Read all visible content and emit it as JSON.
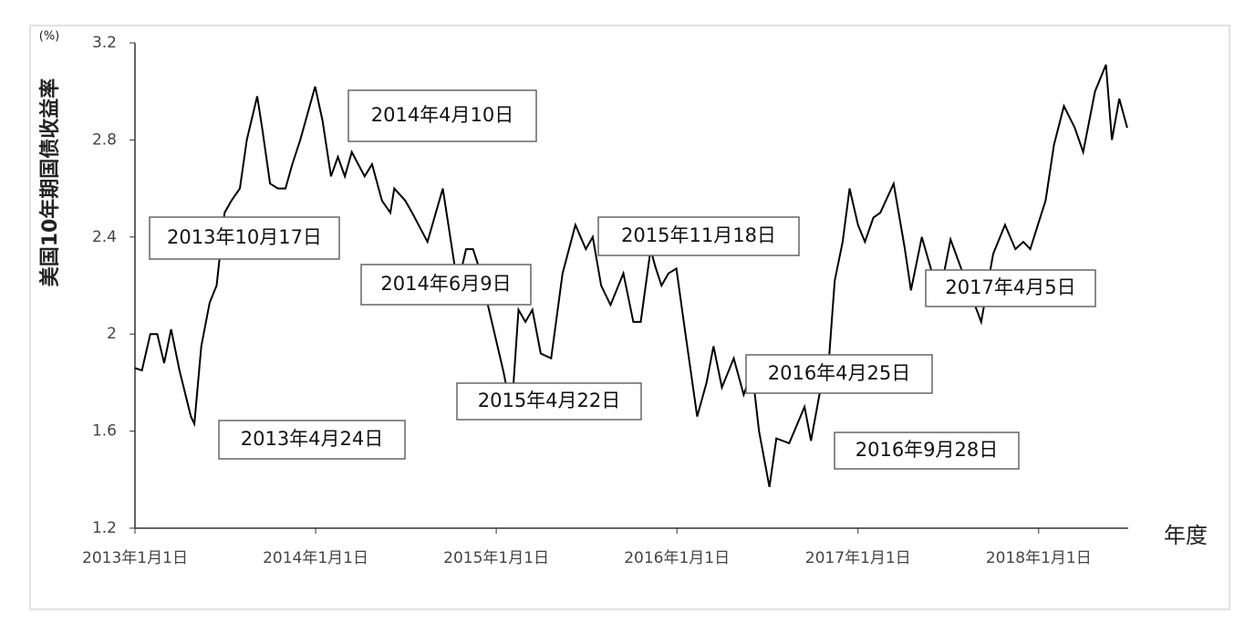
{
  "chart_data": {
    "type": "line",
    "y_label": "美国10年期国债收益率",
    "y_unit": "(%)",
    "x_label": "年度",
    "color": "#000000",
    "x": [
      "2013-01-01",
      "2013-01-15",
      "2013-02-01",
      "2013-02-15",
      "2013-03-01",
      "2013-03-15",
      "2013-04-01",
      "2013-04-24",
      "2013-05-01",
      "2013-05-15",
      "2013-06-01",
      "2013-06-15",
      "2013-07-01",
      "2013-07-15",
      "2013-08-01",
      "2013-08-15",
      "2013-09-05",
      "2013-09-15",
      "2013-10-01",
      "2013-10-17",
      "2013-11-01",
      "2013-11-15",
      "2013-12-01",
      "2013-12-31",
      "2014-01-15",
      "2014-02-01",
      "2014-02-15",
      "2014-03-01",
      "2014-03-15",
      "2014-04-10",
      "2014-04-25",
      "2014-05-15",
      "2014-06-01",
      "2014-06-09",
      "2014-07-01",
      "2014-07-15",
      "2014-08-15",
      "2014-09-15",
      "2014-10-15",
      "2014-11-01",
      "2014-11-15",
      "2014-12-01",
      "2014-12-15",
      "2015-01-15",
      "2015-02-01",
      "2015-02-15",
      "2015-03-01",
      "2015-03-15",
      "2015-04-01",
      "2015-04-22",
      "2015-05-15",
      "2015-06-10",
      "2015-07-01",
      "2015-07-15",
      "2015-08-01",
      "2015-08-20",
      "2015-09-15",
      "2015-10-05",
      "2015-10-20",
      "2015-11-09",
      "2015-11-18",
      "2015-12-01",
      "2015-12-15",
      "2015-12-31",
      "2016-01-15",
      "2016-02-11",
      "2016-03-01",
      "2016-03-15",
      "2016-04-01",
      "2016-04-25",
      "2016-05-15",
      "2016-06-01",
      "2016-06-15",
      "2016-07-06",
      "2016-07-20",
      "2016-08-15",
      "2016-09-15",
      "2016-09-28",
      "2016-10-15",
      "2016-11-01",
      "2016-11-15",
      "2016-12-01",
      "2016-12-15",
      "2017-01-01",
      "2017-01-15",
      "2017-02-01",
      "2017-02-15",
      "2017-03-14",
      "2017-04-05",
      "2017-04-18",
      "2017-05-10",
      "2017-06-14",
      "2017-07-07",
      "2017-08-01",
      "2017-09-07",
      "2017-10-01",
      "2017-10-25",
      "2017-11-15",
      "2017-12-01",
      "2017-12-15",
      "2018-01-01",
      "2018-01-15",
      "2018-02-01",
      "2018-02-21",
      "2018-03-15",
      "2018-04-01",
      "2018-04-25",
      "2018-05-17",
      "2018-05-29",
      "2018-06-13",
      "2018-06-29"
    ],
    "values": [
      1.86,
      1.85,
      2.0,
      2.0,
      1.88,
      2.02,
      1.85,
      1.66,
      1.63,
      1.95,
      2.13,
      2.2,
      2.5,
      2.55,
      2.6,
      2.8,
      2.98,
      2.85,
      2.62,
      2.6,
      2.6,
      2.7,
      2.8,
      3.02,
      2.88,
      2.65,
      2.73,
      2.65,
      2.75,
      2.65,
      2.7,
      2.55,
      2.5,
      2.6,
      2.55,
      2.5,
      2.38,
      2.6,
      2.2,
      2.35,
      2.35,
      2.25,
      2.12,
      1.85,
      1.68,
      2.1,
      2.05,
      2.1,
      1.92,
      1.9,
      2.25,
      2.45,
      2.35,
      2.4,
      2.2,
      2.12,
      2.25,
      2.05,
      2.05,
      2.35,
      2.28,
      2.2,
      2.25,
      2.27,
      2.05,
      1.66,
      1.8,
      1.95,
      1.78,
      1.9,
      1.75,
      1.85,
      1.6,
      1.37,
      1.57,
      1.55,
      1.7,
      1.56,
      1.75,
      1.83,
      2.22,
      2.38,
      2.6,
      2.45,
      2.38,
      2.48,
      2.5,
      2.62,
      2.36,
      2.18,
      2.4,
      2.15,
      2.39,
      2.25,
      2.05,
      2.33,
      2.45,
      2.35,
      2.38,
      2.35,
      2.46,
      2.55,
      2.78,
      2.94,
      2.85,
      2.75,
      3.0,
      3.11,
      2.8,
      2.97,
      2.85
    ],
    "xlim": [
      "2013-01-01",
      "2018-07-01"
    ],
    "xticks": [
      {
        "value": "2013-01-01",
        "label": "2013年1月1日"
      },
      {
        "value": "2014-01-01",
        "label": "2014年1月1日"
      },
      {
        "value": "2015-01-01",
        "label": "2015年1月1日"
      },
      {
        "value": "2016-01-01",
        "label": "2016年1月1日"
      },
      {
        "value": "2017-01-01",
        "label": "2017年1月1日"
      },
      {
        "value": "2018-01-01",
        "label": "2018年1月1日"
      }
    ],
    "ylim": [
      1.2,
      3.2
    ],
    "yticks": [
      1.2,
      1.6,
      2,
      2.4,
      2.8,
      3.2
    ],
    "annotations": [
      "2013年10月17日",
      "2013年4月24日",
      "2014年4月10日",
      "2014年6月9日",
      "2015年4月22日",
      "2015年11月18日",
      "2016年4月25日",
      "2016年9月28日",
      "2017年4月5日"
    ]
  }
}
